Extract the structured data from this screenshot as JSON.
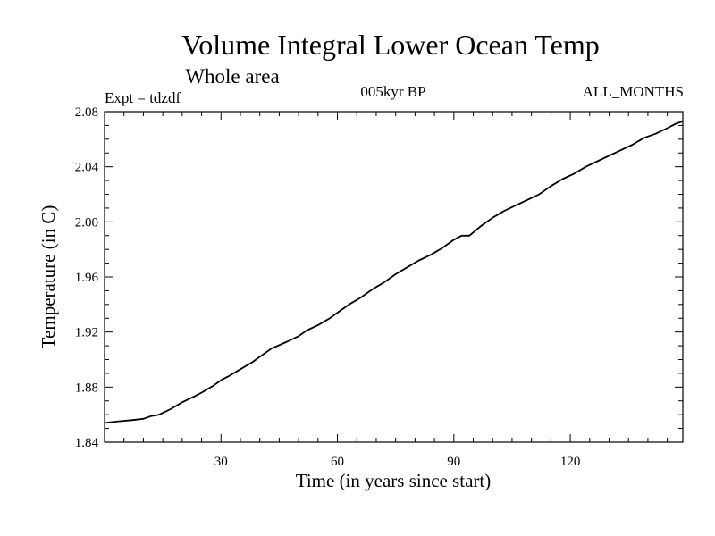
{
  "chart_data": {
    "type": "line",
    "title": "Volume Integral Lower Ocean Temp",
    "subtitle": "Whole area",
    "annotations": {
      "left": "Expt = tdzdf",
      "center": "005kyr BP",
      "right": "ALL_MONTHS"
    },
    "xlabel": "Time (in years since start)",
    "ylabel": "Temperature (in C)",
    "xlim": [
      0,
      149
    ],
    "ylim": [
      1.84,
      2.08
    ],
    "xticks": [
      {
        "value": 30,
        "label": "30"
      },
      {
        "value": 60,
        "label": "60"
      },
      {
        "value": 90,
        "label": "90"
      },
      {
        "value": 120,
        "label": "120"
      }
    ],
    "yticks": [
      {
        "value": 1.84,
        "label": "1.84"
      },
      {
        "value": 1.88,
        "label": "1.88"
      },
      {
        "value": 1.92,
        "label": "1.92"
      },
      {
        "value": 1.96,
        "label": "1.96"
      },
      {
        "value": 2.0,
        "label": "2.00"
      },
      {
        "value": 2.04,
        "label": "2.04"
      },
      {
        "value": 2.08,
        "label": "2.08"
      }
    ],
    "series": [
      {
        "name": "Volume Integral Lower Ocean Temp",
        "x": [
          0,
          3,
          7,
          10,
          12,
          14,
          17,
          20,
          23,
          25,
          28,
          30,
          32,
          35,
          38,
          40,
          43,
          47,
          50,
          52,
          55,
          58,
          60,
          63,
          66,
          69,
          72,
          75,
          78,
          81,
          84,
          87,
          90,
          92,
          94,
          97,
          100,
          103,
          106,
          109,
          112,
          115,
          118,
          121,
          124,
          127,
          130,
          133,
          136,
          139,
          142,
          145,
          147,
          149
        ],
        "y": [
          1.854,
          1.855,
          1.856,
          1.857,
          1.859,
          1.86,
          1.864,
          1.869,
          1.873,
          1.876,
          1.881,
          1.885,
          1.888,
          1.893,
          1.898,
          1.902,
          1.908,
          1.913,
          1.917,
          1.921,
          1.925,
          1.93,
          1.934,
          1.94,
          1.945,
          1.951,
          1.956,
          1.962,
          1.967,
          1.972,
          1.976,
          1.981,
          1.987,
          1.99,
          1.99,
          1.997,
          2.003,
          2.008,
          2.012,
          2.016,
          2.02,
          2.026,
          2.031,
          2.035,
          2.04,
          2.044,
          2.048,
          2.052,
          2.056,
          2.061,
          2.064,
          2.068,
          2.071,
          2.073
        ]
      }
    ]
  }
}
